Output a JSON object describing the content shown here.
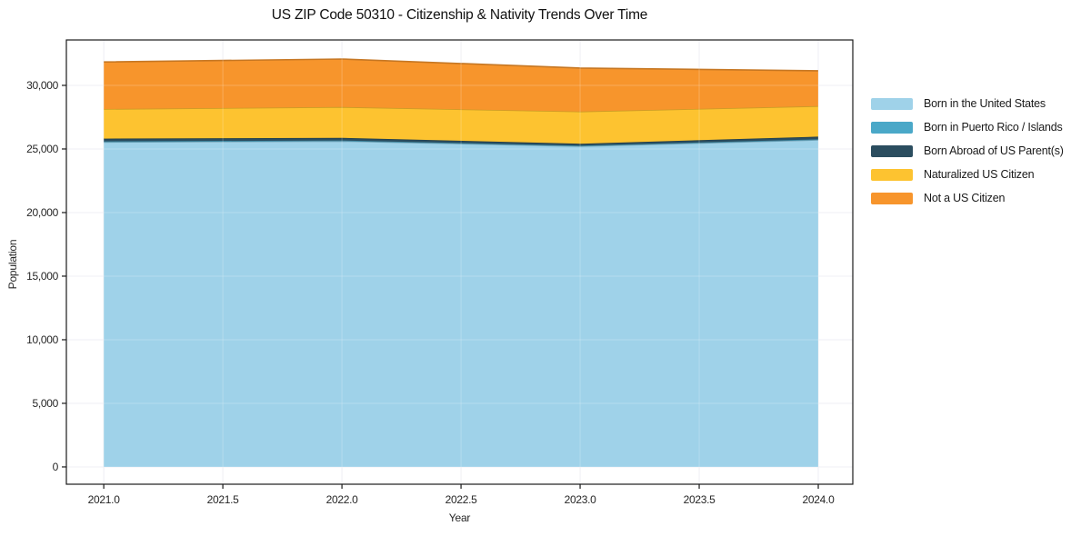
{
  "page": {
    "background": "#ffffff",
    "spine_color": "#1a1a1a",
    "grid_color": "#ebebf1"
  },
  "chart_data": {
    "type": "area",
    "stacked": true,
    "title": "US ZIP Code 50310 - Citizenship & Nativity Trends Over Time",
    "xlabel": "Year",
    "ylabel": "Population",
    "x": [
      2021,
      2022,
      2023,
      2024
    ],
    "series": [
      {
        "name": "Born in the United States",
        "color": "#9fd2e9",
        "values": [
          25540,
          25610,
          25210,
          25710
        ]
      },
      {
        "name": "Born in Puerto Rico / Islands",
        "color": "#4aa8c8",
        "values": [
          60,
          60,
          50,
          50
        ]
      },
      {
        "name": "Born Abroad of US Parent(s)",
        "color": "#2b4d5f",
        "values": [
          210,
          210,
          150,
          210
        ]
      },
      {
        "name": "Naturalized US Citizen",
        "color": "#fdc330",
        "values": [
          2330,
          2420,
          2530,
          2400
        ]
      },
      {
        "name": "Not a US Citizen",
        "color": "#f7952c",
        "values": [
          3700,
          3770,
          3420,
          2780
        ]
      }
    ],
    "totals": [
      31840,
      32070,
      31360,
      31150
    ],
    "x_ticks": [
      "2021.0",
      "2021.5",
      "2022.0",
      "2022.5",
      "2023.0",
      "2023.5",
      "2024.0"
    ],
    "x_tick_values": [
      2021,
      2021.5,
      2022,
      2022.5,
      2023,
      2023.5,
      2024
    ],
    "y_ticks": [
      "0",
      "5,000",
      "10,000",
      "15,000",
      "20,000",
      "25,000",
      "30,000"
    ],
    "y_tick_values": [
      0,
      5000,
      10000,
      15000,
      20000,
      25000,
      30000
    ],
    "xlim": [
      2020.843,
      2024.145
    ],
    "ylim": [
      -1360,
      33570
    ],
    "grid": true,
    "legend_position": "right"
  }
}
